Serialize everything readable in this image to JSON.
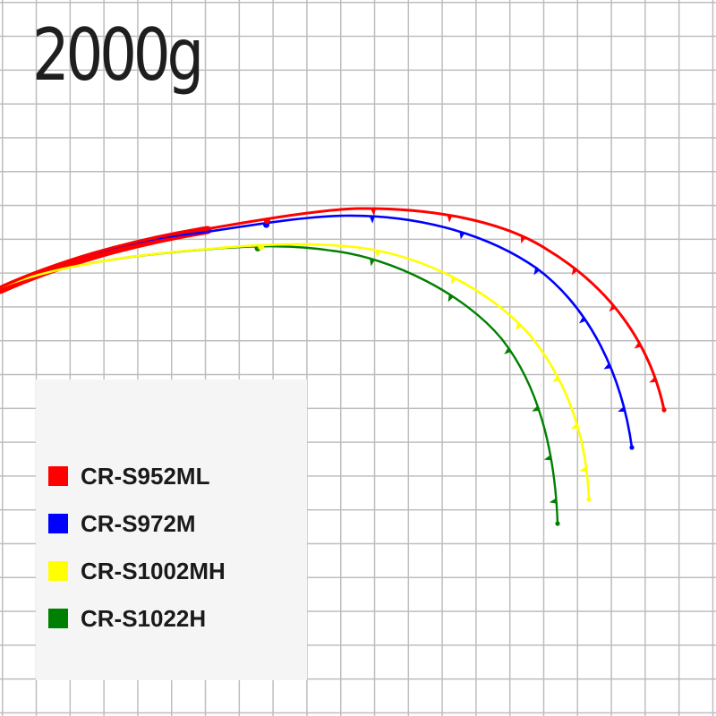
{
  "chart_data": {
    "type": "line",
    "title": "2000g",
    "series": [
      {
        "name": "CR-S952ML",
        "color": "#ff0000"
      },
      {
        "name": "CR-S972M",
        "color": "#0000ff"
      },
      {
        "name": "CR-S1002MH",
        "color": "#ffff00"
      },
      {
        "name": "CR-S1022H",
        "color": "#008000"
      }
    ],
    "grid": true,
    "legend_position": "bottom-left"
  }
}
